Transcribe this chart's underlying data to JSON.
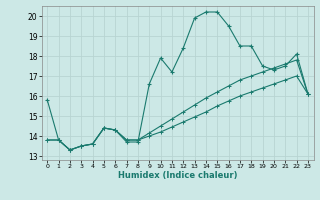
{
  "xlabel": "Humidex (Indice chaleur)",
  "ylabel": "",
  "xlim": [
    -0.5,
    23.5
  ],
  "ylim": [
    12.8,
    20.5
  ],
  "yticks": [
    13,
    14,
    15,
    16,
    17,
    18,
    19,
    20
  ],
  "xticks": [
    0,
    1,
    2,
    3,
    4,
    5,
    6,
    7,
    8,
    9,
    10,
    11,
    12,
    13,
    14,
    15,
    16,
    17,
    18,
    19,
    20,
    21,
    22,
    23
  ],
  "bg_color": "#cce8e6",
  "grid_color": "#b8d4d2",
  "line_color": "#1a7a6e",
  "line1_x": [
    0,
    1,
    2,
    3,
    4,
    5,
    6,
    7,
    8,
    9,
    10,
    11,
    12,
    13,
    14,
    15,
    16,
    17,
    18,
    19,
    20,
    21,
    22,
    23
  ],
  "line1_y": [
    15.8,
    13.8,
    13.3,
    13.5,
    13.6,
    14.4,
    14.3,
    13.7,
    13.7,
    16.6,
    17.9,
    17.2,
    18.4,
    19.9,
    20.2,
    20.2,
    19.5,
    18.5,
    18.5,
    17.5,
    17.3,
    17.5,
    18.1,
    16.1
  ],
  "line2_x": [
    0,
    1,
    2,
    3,
    4,
    5,
    6,
    7,
    8,
    9,
    10,
    11,
    12,
    13,
    14,
    15,
    16,
    17,
    18,
    19,
    20,
    21,
    22,
    23
  ],
  "line2_y": [
    13.8,
    13.8,
    13.3,
    13.5,
    13.6,
    14.4,
    14.3,
    13.8,
    13.8,
    14.15,
    14.5,
    14.85,
    15.2,
    15.55,
    15.9,
    16.2,
    16.5,
    16.8,
    17.0,
    17.2,
    17.4,
    17.6,
    17.8,
    16.1
  ],
  "line3_x": [
    0,
    1,
    2,
    3,
    4,
    5,
    6,
    7,
    8,
    9,
    10,
    11,
    12,
    13,
    14,
    15,
    16,
    17,
    18,
    19,
    20,
    21,
    22,
    23
  ],
  "line3_y": [
    13.8,
    13.8,
    13.3,
    13.5,
    13.6,
    14.4,
    14.3,
    13.8,
    13.8,
    14.0,
    14.2,
    14.45,
    14.7,
    14.95,
    15.2,
    15.5,
    15.75,
    16.0,
    16.2,
    16.4,
    16.6,
    16.8,
    17.0,
    16.1
  ]
}
